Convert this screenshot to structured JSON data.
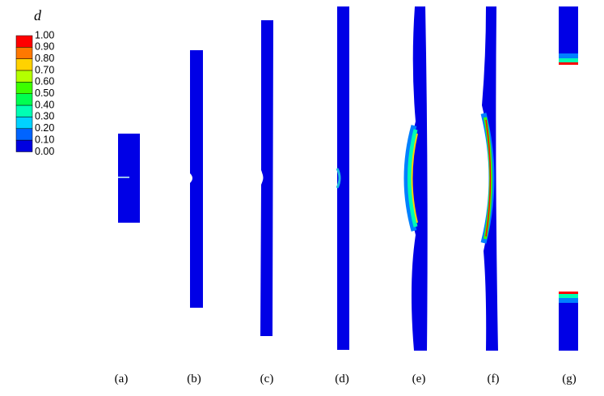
{
  "legend": {
    "title": "d",
    "labels": [
      "1.00",
      "0.90",
      "0.80",
      "0.70",
      "0.60",
      "0.50",
      "0.40",
      "0.30",
      "0.20",
      "0.10",
      "0.00"
    ],
    "colors": [
      "#ff0000",
      "#ff7800",
      "#ffd200",
      "#b4ff00",
      "#3cff00",
      "#00ff50",
      "#00ffb4",
      "#00d2ff",
      "#0064ff",
      "#0000e0"
    ]
  },
  "panels": [
    "(a)",
    "(b)",
    "(c)",
    "(d)",
    "(e)",
    "(f)",
    "(g)"
  ]
}
